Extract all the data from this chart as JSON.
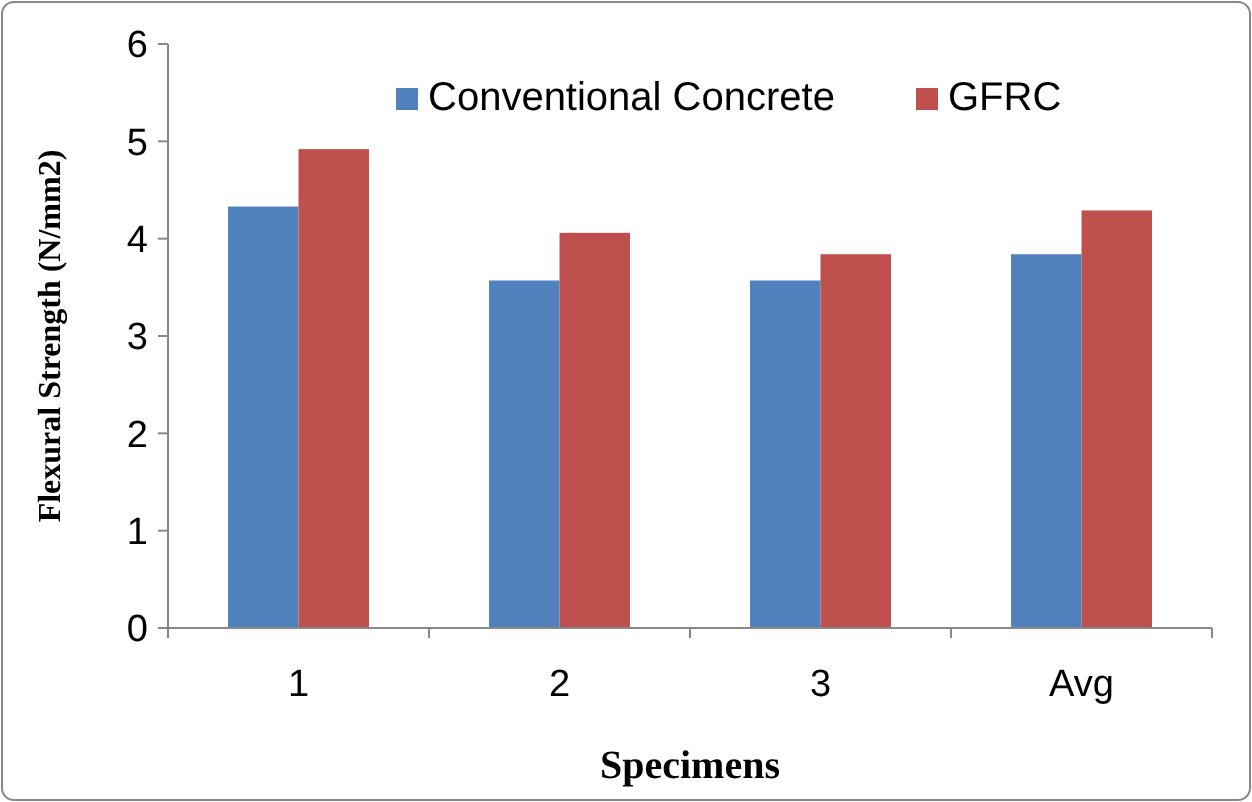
{
  "chart_data": {
    "type": "bar",
    "xlabel": "Specimens",
    "ylabel": "Flexural Strength (N/mm2)",
    "categories": [
      "1",
      "2",
      "3",
      "Avg"
    ],
    "series": [
      {
        "name": "Conventional Concrete",
        "color": "#4f81bd",
        "values": [
          4.33,
          3.57,
          3.57,
          3.84
        ]
      },
      {
        "name": "GFRC",
        "color": "#c0504d",
        "values": [
          4.92,
          4.06,
          3.84,
          4.29
        ]
      }
    ],
    "ylim": [
      0,
      6
    ],
    "yticks": [
      0,
      1,
      2,
      3,
      4,
      5,
      6
    ],
    "grid": false,
    "legend": "top right"
  }
}
